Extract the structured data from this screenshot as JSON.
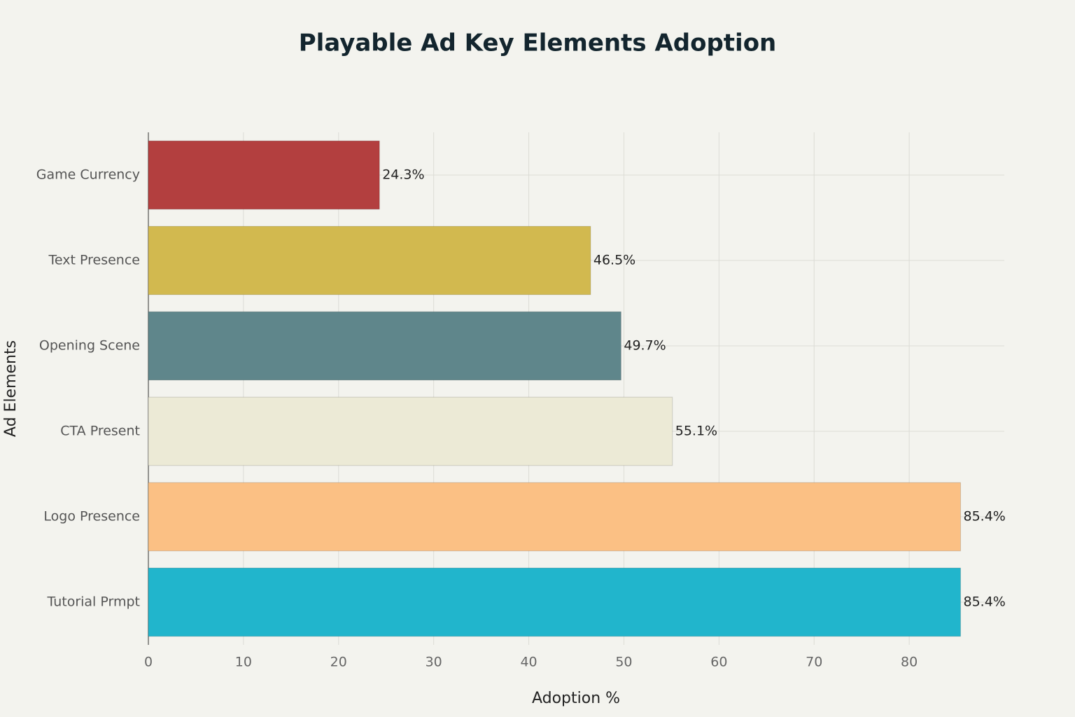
{
  "chart_data": {
    "type": "bar",
    "orientation": "horizontal",
    "title": "Playable Ad Key Elements Adoption",
    "x_label": "Adoption %",
    "y_label": "Ad Elements",
    "categories": [
      "Game Currency",
      "Text Presence",
      "Opening Scene",
      "CTA Present",
      "Logo Presence",
      "Tutorial Prmpt"
    ],
    "values": [
      24.3,
      46.5,
      49.7,
      55.1,
      85.4,
      85.4
    ],
    "value_labels": [
      "24.3%",
      "46.5%",
      "49.7%",
      "55.1%",
      "85.4%",
      "85.4%"
    ],
    "colors": [
      "#b33f3f",
      "#d2b94f",
      "#5f868b",
      "#ecead6",
      "#fbc084",
      "#21b5cc"
    ],
    "xlim": [
      0,
      90
    ],
    "xticks": [
      0,
      10,
      20,
      30,
      40,
      50,
      60,
      70,
      80
    ],
    "grid": true
  }
}
